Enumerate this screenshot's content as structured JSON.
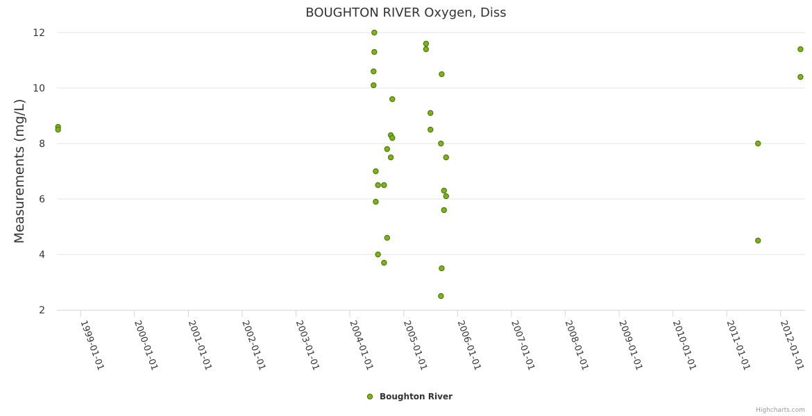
{
  "chart_data": {
    "type": "scatter",
    "title": "BOUGHTON RIVER Oxygen, Diss",
    "xlabel": "",
    "ylabel": "Measurements (mg/L)",
    "ylim": [
      2,
      12
    ],
    "yticks": [
      2,
      4,
      6,
      8,
      10,
      12
    ],
    "xlim": [
      "1998-07-24",
      "2012-06-15"
    ],
    "xticks": [
      "1999-01-01",
      "2000-01-01",
      "2001-01-01",
      "2002-01-01",
      "2003-01-01",
      "2004-01-01",
      "2005-01-01",
      "2006-01-01",
      "2007-01-01",
      "2008-01-01",
      "2009-01-01",
      "2010-01-01",
      "2011-01-01",
      "2012-01-01"
    ],
    "legend": "bottom-center",
    "grid": "horizontal",
    "series": [
      {
        "name": "Boughton River",
        "color": "#7cb518",
        "points": [
          {
            "x": "1998-08-01",
            "y": 8.6
          },
          {
            "x": "1998-08-01",
            "y": 8.5
          },
          {
            "x": "2004-06-15",
            "y": 12.0
          },
          {
            "x": "2004-06-15",
            "y": 11.3
          },
          {
            "x": "2004-06-10",
            "y": 10.6
          },
          {
            "x": "2004-06-10",
            "y": 10.1
          },
          {
            "x": "2004-10-15",
            "y": 9.6
          },
          {
            "x": "2004-10-05",
            "y": 8.3
          },
          {
            "x": "2004-10-15",
            "y": 8.2
          },
          {
            "x": "2004-09-10",
            "y": 7.8
          },
          {
            "x": "2004-10-05",
            "y": 7.5
          },
          {
            "x": "2004-06-25",
            "y": 7.0
          },
          {
            "x": "2004-07-10",
            "y": 6.5
          },
          {
            "x": "2004-08-20",
            "y": 6.5
          },
          {
            "x": "2004-06-25",
            "y": 5.9
          },
          {
            "x": "2004-09-10",
            "y": 4.6
          },
          {
            "x": "2004-07-10",
            "y": 4.0
          },
          {
            "x": "2004-08-20",
            "y": 3.7
          },
          {
            "x": "2005-06-01",
            "y": 11.6
          },
          {
            "x": "2005-06-01",
            "y": 11.4
          },
          {
            "x": "2005-09-15",
            "y": 10.5
          },
          {
            "x": "2005-07-01",
            "y": 9.1
          },
          {
            "x": "2005-07-01",
            "y": 8.5
          },
          {
            "x": "2005-09-10",
            "y": 8.0
          },
          {
            "x": "2005-10-15",
            "y": 7.5
          },
          {
            "x": "2005-10-01",
            "y": 6.3
          },
          {
            "x": "2005-10-15",
            "y": 6.1
          },
          {
            "x": "2005-10-01",
            "y": 5.6
          },
          {
            "x": "2005-09-15",
            "y": 3.5
          },
          {
            "x": "2005-09-10",
            "y": 2.5
          },
          {
            "x": "2011-08-01",
            "y": 8.0
          },
          {
            "x": "2011-08-01",
            "y": 4.5
          },
          {
            "x": "2012-05-15",
            "y": 11.4
          },
          {
            "x": "2012-05-15",
            "y": 10.4
          }
        ]
      }
    ]
  },
  "credits": "Highcharts.com"
}
